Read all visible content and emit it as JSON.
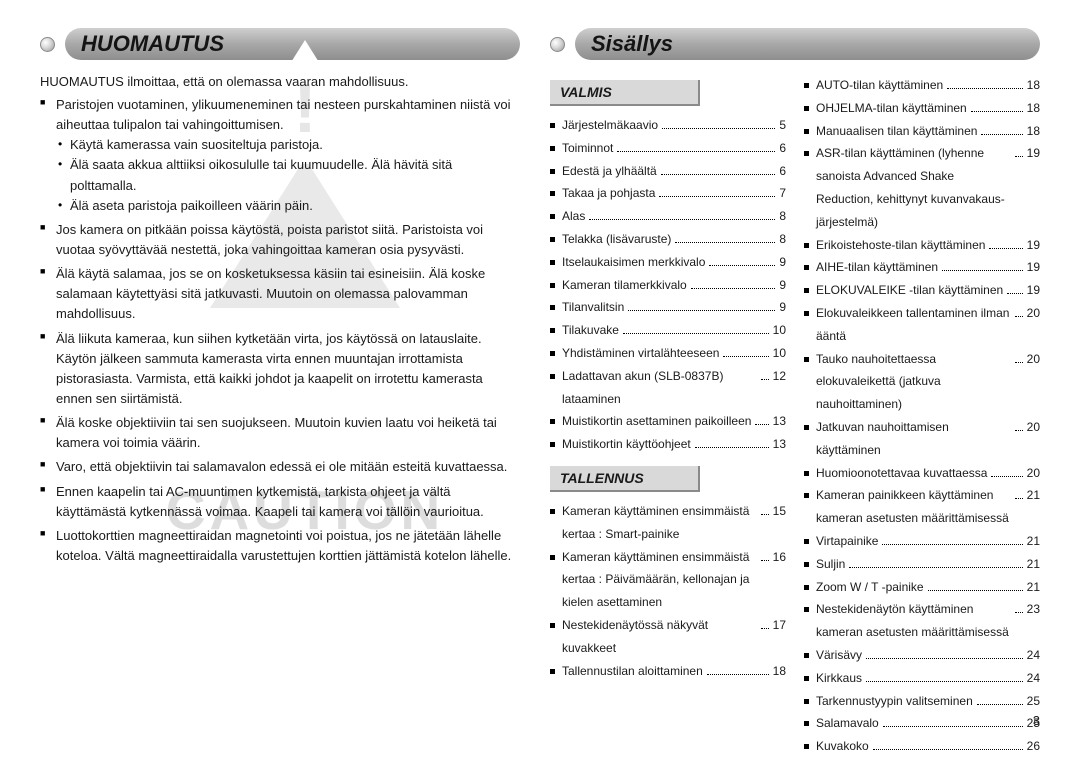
{
  "page_number": "3",
  "watermark_text": "CAUTION",
  "left": {
    "heading": "HUOMAUTUS",
    "intro": "HUOMAUTUS ilmoittaa, että on olemassa vaaran mahdollisuus.",
    "item1": "Paristojen vuotaminen, ylikuumeneminen tai nesteen purskahtaminen niistä voi aiheuttaa tulipalon tai vahingoittumisen.",
    "sub1": "Käytä kamerassa vain suositeltuja paristoja.",
    "sub2": "Älä saata akkua alttiiksi oikosululle tai kuumuudelle. Älä hävitä sitä polttamalla.",
    "sub3": "Älä aseta paristoja paikoilleen väärin päin.",
    "item2": "Jos kamera on pitkään poissa käytöstä, poista paristot siitä. Paristoista voi vuotaa syövyttävää nestettä, joka vahingoittaa kameran osia pysyvästi.",
    "item3": "Älä käytä salamaa, jos se on kosketuksessa käsiin tai esineisiin. Älä koske salamaan käytettyäsi sitä jatkuvasti. Muutoin on olemassa palovamman mahdollisuus.",
    "item4": "Älä liikuta kameraa, kun siihen kytketään virta, jos käytössä on latauslaite. Käytön jälkeen sammuta kamerasta virta ennen muuntajan irrottamista pistorasiasta. Varmista, että kaikki johdot ja kaapelit on irrotettu kamerasta ennen sen siirtämistä.",
    "item5": "Älä koske objektiiviin tai sen suojukseen. Muutoin kuvien laatu voi heiketä tai kamera voi toimia väärin.",
    "item6": "Varo, että objektiivin tai salamavalon edessä ei ole mitään esteitä kuvattaessa.",
    "item7": "Ennen kaapelin tai AC-muuntimen kytkemistä, tarkista ohjeet ja vältä käyttämästä kytkennässä voimaa. Kaapeli tai kamera voi tällöin vaurioitua.",
    "item8": "Luottokorttien magneettiraidan magnetointi voi poistua, jos ne jätetään lähelle koteloa. Vältä magneettiraidalla varustettujen korttien jättämistä kotelon lähelle."
  },
  "right": {
    "heading": "Sisällys",
    "sections": {
      "valmis": {
        "title": "VALMIS"
      },
      "tallennus": {
        "title": "TALLENNUS"
      }
    },
    "colA": [
      {
        "t": "Järjestelmäkaavio",
        "p": "5"
      },
      {
        "t": "Toiminnot",
        "p": "6"
      },
      {
        "t": "Edestä ja ylhäältä",
        "p": "6"
      },
      {
        "t": "Takaa ja pohjasta",
        "p": "7"
      },
      {
        "t": "Alas",
        "p": "8"
      },
      {
        "t": "Telakka (lisävaruste)",
        "p": "8"
      },
      {
        "t": "Itselaukaisimen merkkivalo",
        "p": "9"
      },
      {
        "t": "Kameran tilamerkkivalo",
        "p": "9"
      },
      {
        "t": "Tilanvalitsin",
        "p": "9"
      },
      {
        "t": "Tilakuvake",
        "p": "10"
      },
      {
        "t": "Yhdistäminen virtalähteeseen",
        "p": "10"
      },
      {
        "t": "Ladattavan akun (SLB-0837B) lataaminen",
        "p": "12"
      },
      {
        "t": "Muistikortin asettaminen paikoilleen",
        "p": "13"
      },
      {
        "t": "Muistikortin käyttöohjeet",
        "p": "13"
      }
    ],
    "colA2": [
      {
        "t": "Kameran käyttäminen ensimmäistä kertaa : Smart-painike",
        "p": "15"
      },
      {
        "t": "Kameran käyttäminen ensimmäistä kertaa : Päivämäärän, kellonajan ja kielen asettaminen",
        "p": "16"
      },
      {
        "t": "Nestekidenäytössä näkyvät kuvakkeet",
        "p": "17"
      },
      {
        "t": "Tallennustilan aloittaminen",
        "p": "18"
      }
    ],
    "colB": [
      {
        "t": "AUTO-tilan käyttäminen",
        "p": "18"
      },
      {
        "t": "OHJELMA-tilan käyttäminen",
        "p": "18"
      },
      {
        "t": "Manuaalisen tilan käyttäminen",
        "p": "18"
      },
      {
        "t": "ASR-tilan käyttäminen (lyhenne sanoista Advanced Shake Reduction, kehittynyt kuvanvakaus-järjestelmä)",
        "p": "19"
      },
      {
        "t": "Erikoistehoste-tilan käyttäminen",
        "p": "19"
      },
      {
        "t": "AIHE-tilan käyttäminen",
        "p": "19"
      },
      {
        "t": "ELOKUVALEIKE -tilan käyttäminen",
        "p": "19"
      },
      {
        "t": "Elokuvaleikkeen tallentaminen ilman ääntä",
        "p": "20"
      },
      {
        "t": "Tauko nauhoitettaessa elokuvaleikettä (jatkuva nauhoittaminen)",
        "p": "20"
      },
      {
        "t": "Jatkuvan nauhoittamisen käyttäminen",
        "p": "20"
      },
      {
        "t": "Huomioonotettavaa kuvattaessa",
        "p": "20"
      },
      {
        "t": "Kameran painikkeen käyttäminen kameran asetusten määrittämisessä",
        "p": "21"
      },
      {
        "t": "Virtapainike",
        "p": "21"
      },
      {
        "t": "Suljin",
        "p": "21"
      },
      {
        "t": "Zoom W / T -painike",
        "p": "21"
      },
      {
        "t": "Nestekidenäytön käyttäminen kameran asetusten määrittämisessä",
        "p": "23"
      },
      {
        "t": "Värisävy",
        "p": "24"
      },
      {
        "t": "Kirkkaus",
        "p": "24"
      },
      {
        "t": "Tarkennustyypin valitseminen",
        "p": "25"
      },
      {
        "t": "Salamavalo",
        "p": "25"
      },
      {
        "t": "Kuvakoko",
        "p": "26"
      }
    ]
  },
  "colors": {
    "text": "#1a1a1a",
    "pill_grad_top": "#cfcfcf",
    "pill_grad_bot": "#8e8e8e",
    "subhead_bg": "#d9d9d9",
    "watermark": "#dddddd"
  },
  "fonts": {
    "body_pt": 10,
    "heading_pt": 17,
    "subhead_pt": 11
  }
}
